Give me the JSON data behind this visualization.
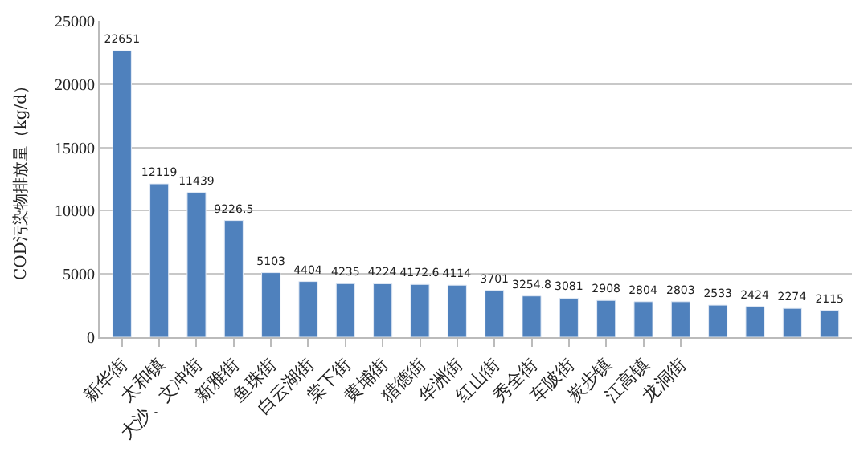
{
  "chart_data": {
    "type": "bar",
    "ylabel": "COD污染物排放量（kg/d）",
    "categories": [
      "新华街",
      "太和镇",
      "大沙、文冲街",
      "新雅街",
      "鱼珠街",
      "白云湖街",
      "棠下街",
      "黄埔街",
      "猎德街",
      "华洲街",
      "红山街",
      "秀全街",
      "车陂街",
      "炭步镇",
      "江高镇",
      "龙洞街",
      null,
      null,
      null,
      null
    ],
    "values": [
      22651,
      12119,
      11439,
      9226.5,
      5103,
      4404,
      4235,
      4224,
      4172.6,
      4114,
      3701,
      3254.8,
      3081,
      2908,
      2804,
      2803,
      2533,
      2424,
      2274,
      2115
    ],
    "color": "#4f81bd",
    "ylim": [
      0,
      25000
    ],
    "yticks": [
      0,
      5000,
      10000,
      15000,
      20000,
      25000
    ],
    "grid": "y",
    "data_labels": true,
    "legend": false
  }
}
